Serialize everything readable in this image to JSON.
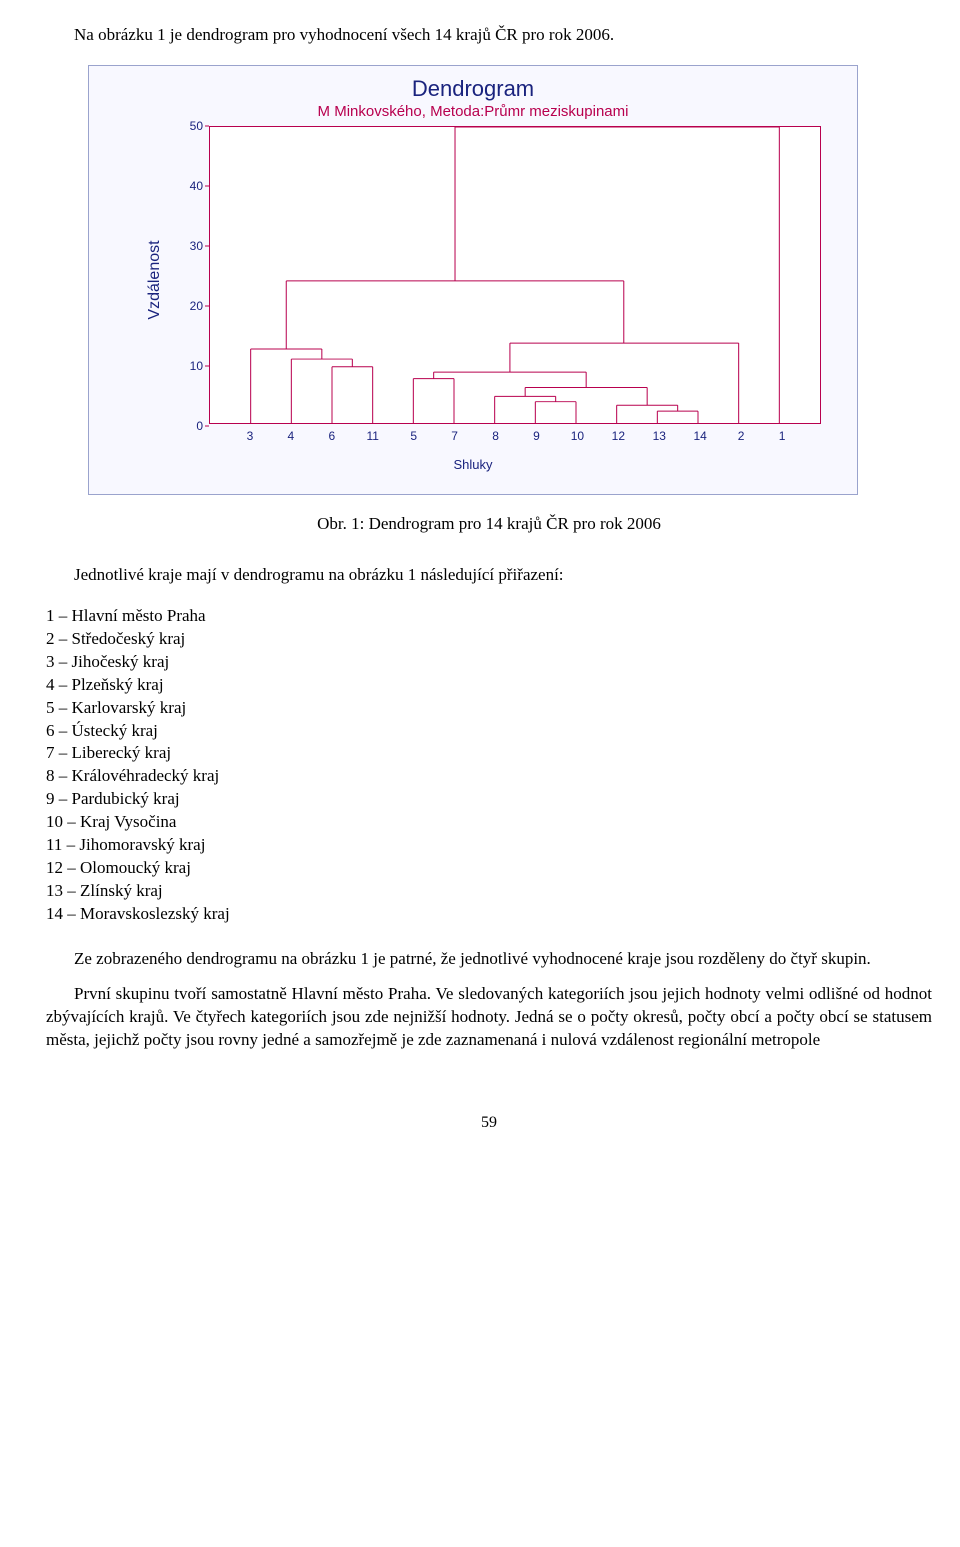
{
  "intro_text": "Na obrázku 1 je dendrogram pro vyhodnocení všech 14 krajů ČR pro rok 2006.",
  "chart": {
    "title": "Dendrogram",
    "subtitle": "M Minkovského, Metoda:Průmr meziskupinami",
    "y_label": "Vzdálenost",
    "x_label": "Shluky",
    "y_ticks": [
      0,
      10,
      20,
      30,
      40,
      50
    ],
    "y_min": 0,
    "y_max": 50,
    "x_categories": [
      "3",
      "4",
      "6",
      "11",
      "5",
      "7",
      "8",
      "9",
      "10",
      "12",
      "13",
      "14",
      "2",
      "1"
    ],
    "title_color": "#1a237e",
    "subtitle_color": "#b8004e",
    "frame_stroke": "#b8004e",
    "background_color": "#f8f8ff",
    "box_border": "#9aa3cd",
    "dendro": {
      "leaves_x_step": 40,
      "first_x": 40,
      "merges": [
        {
          "id": "m1",
          "a_x": 440,
          "b_x": 480,
          "a_y": 0,
          "b_y": 0,
          "h": 2.0,
          "mid_x": 460
        },
        {
          "id": "m2",
          "a_x": 400,
          "b_x": 460,
          "a_y": 0,
          "b_y": 2.0,
          "h": 3.0,
          "mid_x": 430
        },
        {
          "id": "m3",
          "a_x": 320,
          "b_x": 360,
          "a_y": 0,
          "b_y": 0,
          "h": 3.6,
          "mid_x": 340
        },
        {
          "id": "m4",
          "a_x": 280,
          "b_x": 340,
          "a_y": 0,
          "b_y": 3.6,
          "h": 4.5,
          "mid_x": 310
        },
        {
          "id": "m5",
          "a_x": 310,
          "b_x": 430,
          "a_y": 4.5,
          "b_y": 3.0,
          "h": 6.0,
          "mid_x": 370
        },
        {
          "id": "m6",
          "a_x": 200,
          "b_x": 240,
          "a_y": 0,
          "b_y": 0,
          "h": 7.5,
          "mid_x": 220
        },
        {
          "id": "m7",
          "a_x": 220,
          "b_x": 370,
          "a_y": 7.5,
          "b_y": 6.0,
          "h": 8.6,
          "mid_x": 295
        },
        {
          "id": "m8",
          "a_x": 120,
          "b_x": 160,
          "a_y": 0,
          "b_y": 0,
          "h": 9.5,
          "mid_x": 140
        },
        {
          "id": "m9",
          "a_x": 80,
          "b_x": 140,
          "a_y": 0,
          "b_y": 9.5,
          "h": 10.8,
          "mid_x": 110
        },
        {
          "id": "m10",
          "a_x": 40,
          "b_x": 110,
          "a_y": 0,
          "b_y": 10.8,
          "h": 12.5,
          "mid_x": 75
        },
        {
          "id": "m11",
          "a_x": 295,
          "b_x": 520,
          "a_y": 8.6,
          "b_y": 0,
          "h": 13.5,
          "mid_x": 407
        },
        {
          "id": "m12",
          "a_x": 75,
          "b_x": 407,
          "a_y": 12.5,
          "b_y": 13.5,
          "h": 24.0,
          "mid_x": 241
        },
        {
          "id": "m13",
          "a_x": 241,
          "b_x": 560,
          "a_y": 24.0,
          "b_y": 0,
          "h": 50.0,
          "mid_x": 400
        }
      ]
    }
  },
  "caption": "Obr. 1: Dendrogram pro 14 krajů ČR pro rok 2006",
  "legend_intro": "Jednotlivé kraje mají v dendrogramu na obrázku 1 následující přiřazení:",
  "legend": [
    "1 – Hlavní město Praha",
    "2 – Středočeský kraj",
    "3 – Jihočeský kraj",
    "4 – Plzeňský kraj",
    "5 – Karlovarský kraj",
    "6 – Ústecký kraj",
    "7 – Liberecký kraj",
    "8 – Královéhradecký kraj",
    "9 – Pardubický kraj",
    "10 – Kraj Vysočina",
    "11 – Jihomoravský kraj",
    "12 – Olomoucký kraj",
    "13 – Zlínský kraj",
    "14 – Moravskoslezský kraj"
  ],
  "para1": "Ze zobrazeného dendrogramu  na obrázku 1 je patrné, že jednotlivé vyhodnocené kraje jsou rozděleny do čtyř skupin.",
  "para2": "První skupinu tvoří samostatně Hlavní město Praha. Ve sledovaných kategoriích jsou jejich hodnoty velmi odlišné od hodnot zbývajících krajů. Ve čtyřech kategoriích jsou zde nejnižší hodnoty. Jedná se o počty okresů, počty obcí a počty obcí se statusem města, jejichž počty jsou rovny jedné a samozřejmě je zde zaznamenaná i nulová vzdálenost regionální metropole",
  "page_number": "59"
}
